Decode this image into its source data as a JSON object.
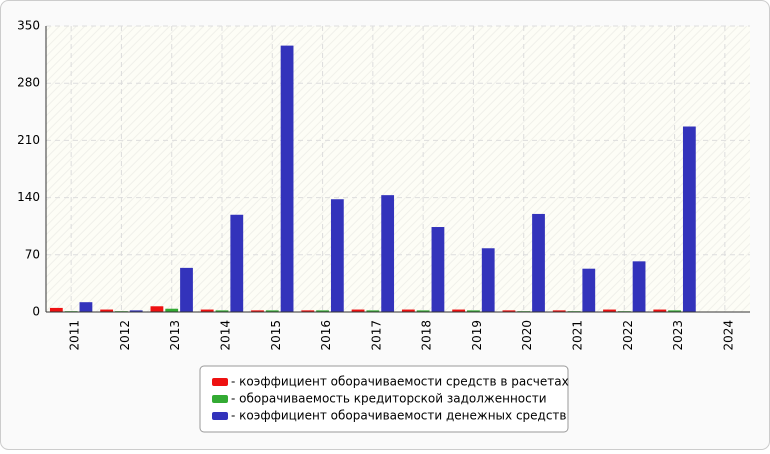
{
  "chart_data": {
    "type": "bar",
    "categories": [
      "2011",
      "2012",
      "2013",
      "2014",
      "2015",
      "2016",
      "2017",
      "2018",
      "2019",
      "2020",
      "2021",
      "2022",
      "2023",
      "2024"
    ],
    "series": [
      {
        "name": "- коэффициент оборачиваемости средств в расчетах",
        "color": "#ee1111",
        "values": [
          5,
          3,
          7,
          3,
          2,
          2,
          3,
          3,
          3,
          2,
          2,
          3,
          3,
          null
        ]
      },
      {
        "name": "- оборачиваемость кредиторской задолженности",
        "color": "#33aa33",
        "values": [
          1,
          1,
          4,
          2,
          2,
          2,
          2,
          2,
          2,
          1,
          1,
          1,
          2,
          null
        ]
      },
      {
        "name": "- коэффициент оборачиваемости денежных средств",
        "color": "#3333bb",
        "values": [
          12,
          2,
          54,
          119,
          326,
          138,
          143,
          104,
          78,
          120,
          53,
          62,
          227,
          null
        ]
      }
    ],
    "ylim": [
      0,
      350
    ],
    "yticks": [
      0,
      70,
      140,
      210,
      280,
      350
    ],
    "grid": true
  }
}
